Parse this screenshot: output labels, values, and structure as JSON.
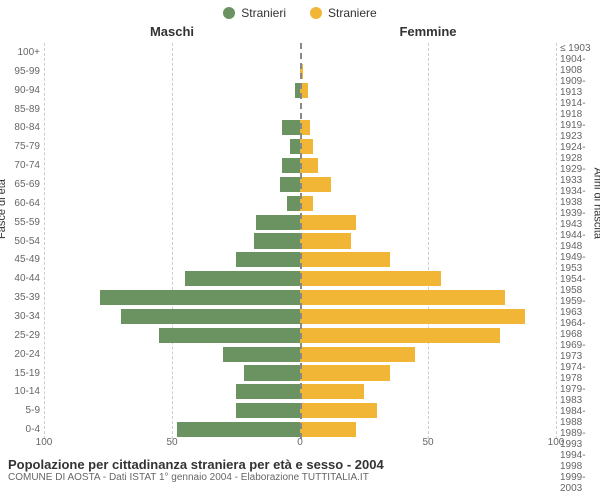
{
  "chart": {
    "type": "population-pyramid",
    "legend": [
      {
        "label": "Stranieri",
        "color": "#6b9362"
      },
      {
        "label": "Straniere",
        "color": "#f2b636"
      }
    ],
    "side_titles": {
      "left": "Maschi",
      "right": "Femmine"
    },
    "y_axis_left": {
      "title": "Fasce di età",
      "labels": [
        "100+",
        "95-99",
        "90-94",
        "85-89",
        "80-84",
        "75-79",
        "70-74",
        "65-69",
        "60-64",
        "55-59",
        "50-54",
        "45-49",
        "40-44",
        "35-39",
        "30-34",
        "25-29",
        "20-24",
        "15-19",
        "10-14",
        "5-9",
        "0-4"
      ]
    },
    "y_axis_right": {
      "title": "Anni di nascita",
      "labels": [
        "≤ 1903",
        "1904-1908",
        "1909-1913",
        "1914-1918",
        "1919-1923",
        "1924-1928",
        "1929-1933",
        "1934-1938",
        "1939-1943",
        "1944-1948",
        "1949-1953",
        "1954-1958",
        "1959-1963",
        "1964-1968",
        "1969-1973",
        "1974-1978",
        "1979-1983",
        "1984-1988",
        "1989-1993",
        "1994-1998",
        "1999-2003"
      ]
    },
    "x_axis": {
      "max": 100,
      "ticks": [
        100,
        50,
        0,
        50,
        100
      ]
    },
    "series": {
      "male": {
        "color": "#6b9362",
        "values": [
          0,
          0,
          2,
          0,
          7,
          4,
          7,
          8,
          5,
          17,
          18,
          25,
          45,
          78,
          70,
          55,
          30,
          22,
          25,
          25,
          48
        ]
      },
      "female": {
        "color": "#f2b636",
        "values": [
          0,
          1,
          3,
          0,
          4,
          5,
          7,
          12,
          5,
          22,
          20,
          35,
          55,
          80,
          88,
          78,
          45,
          35,
          25,
          30,
          22
        ]
      }
    },
    "styling": {
      "background_color": "#ffffff",
      "grid_color": "#cccccc",
      "centerline_color": "#888888",
      "label_color": "#666666",
      "title_color": "#333333",
      "bar_gap_ratio": 0.1,
      "label_fontsize": 10,
      "header_fontsize": 13
    }
  },
  "footer": {
    "title": "Popolazione per cittadinanza straniera per età e sesso - 2004",
    "subtitle": "COMUNE DI AOSTA - Dati ISTAT 1° gennaio 2004 - Elaborazione TUTTITALIA.IT"
  }
}
